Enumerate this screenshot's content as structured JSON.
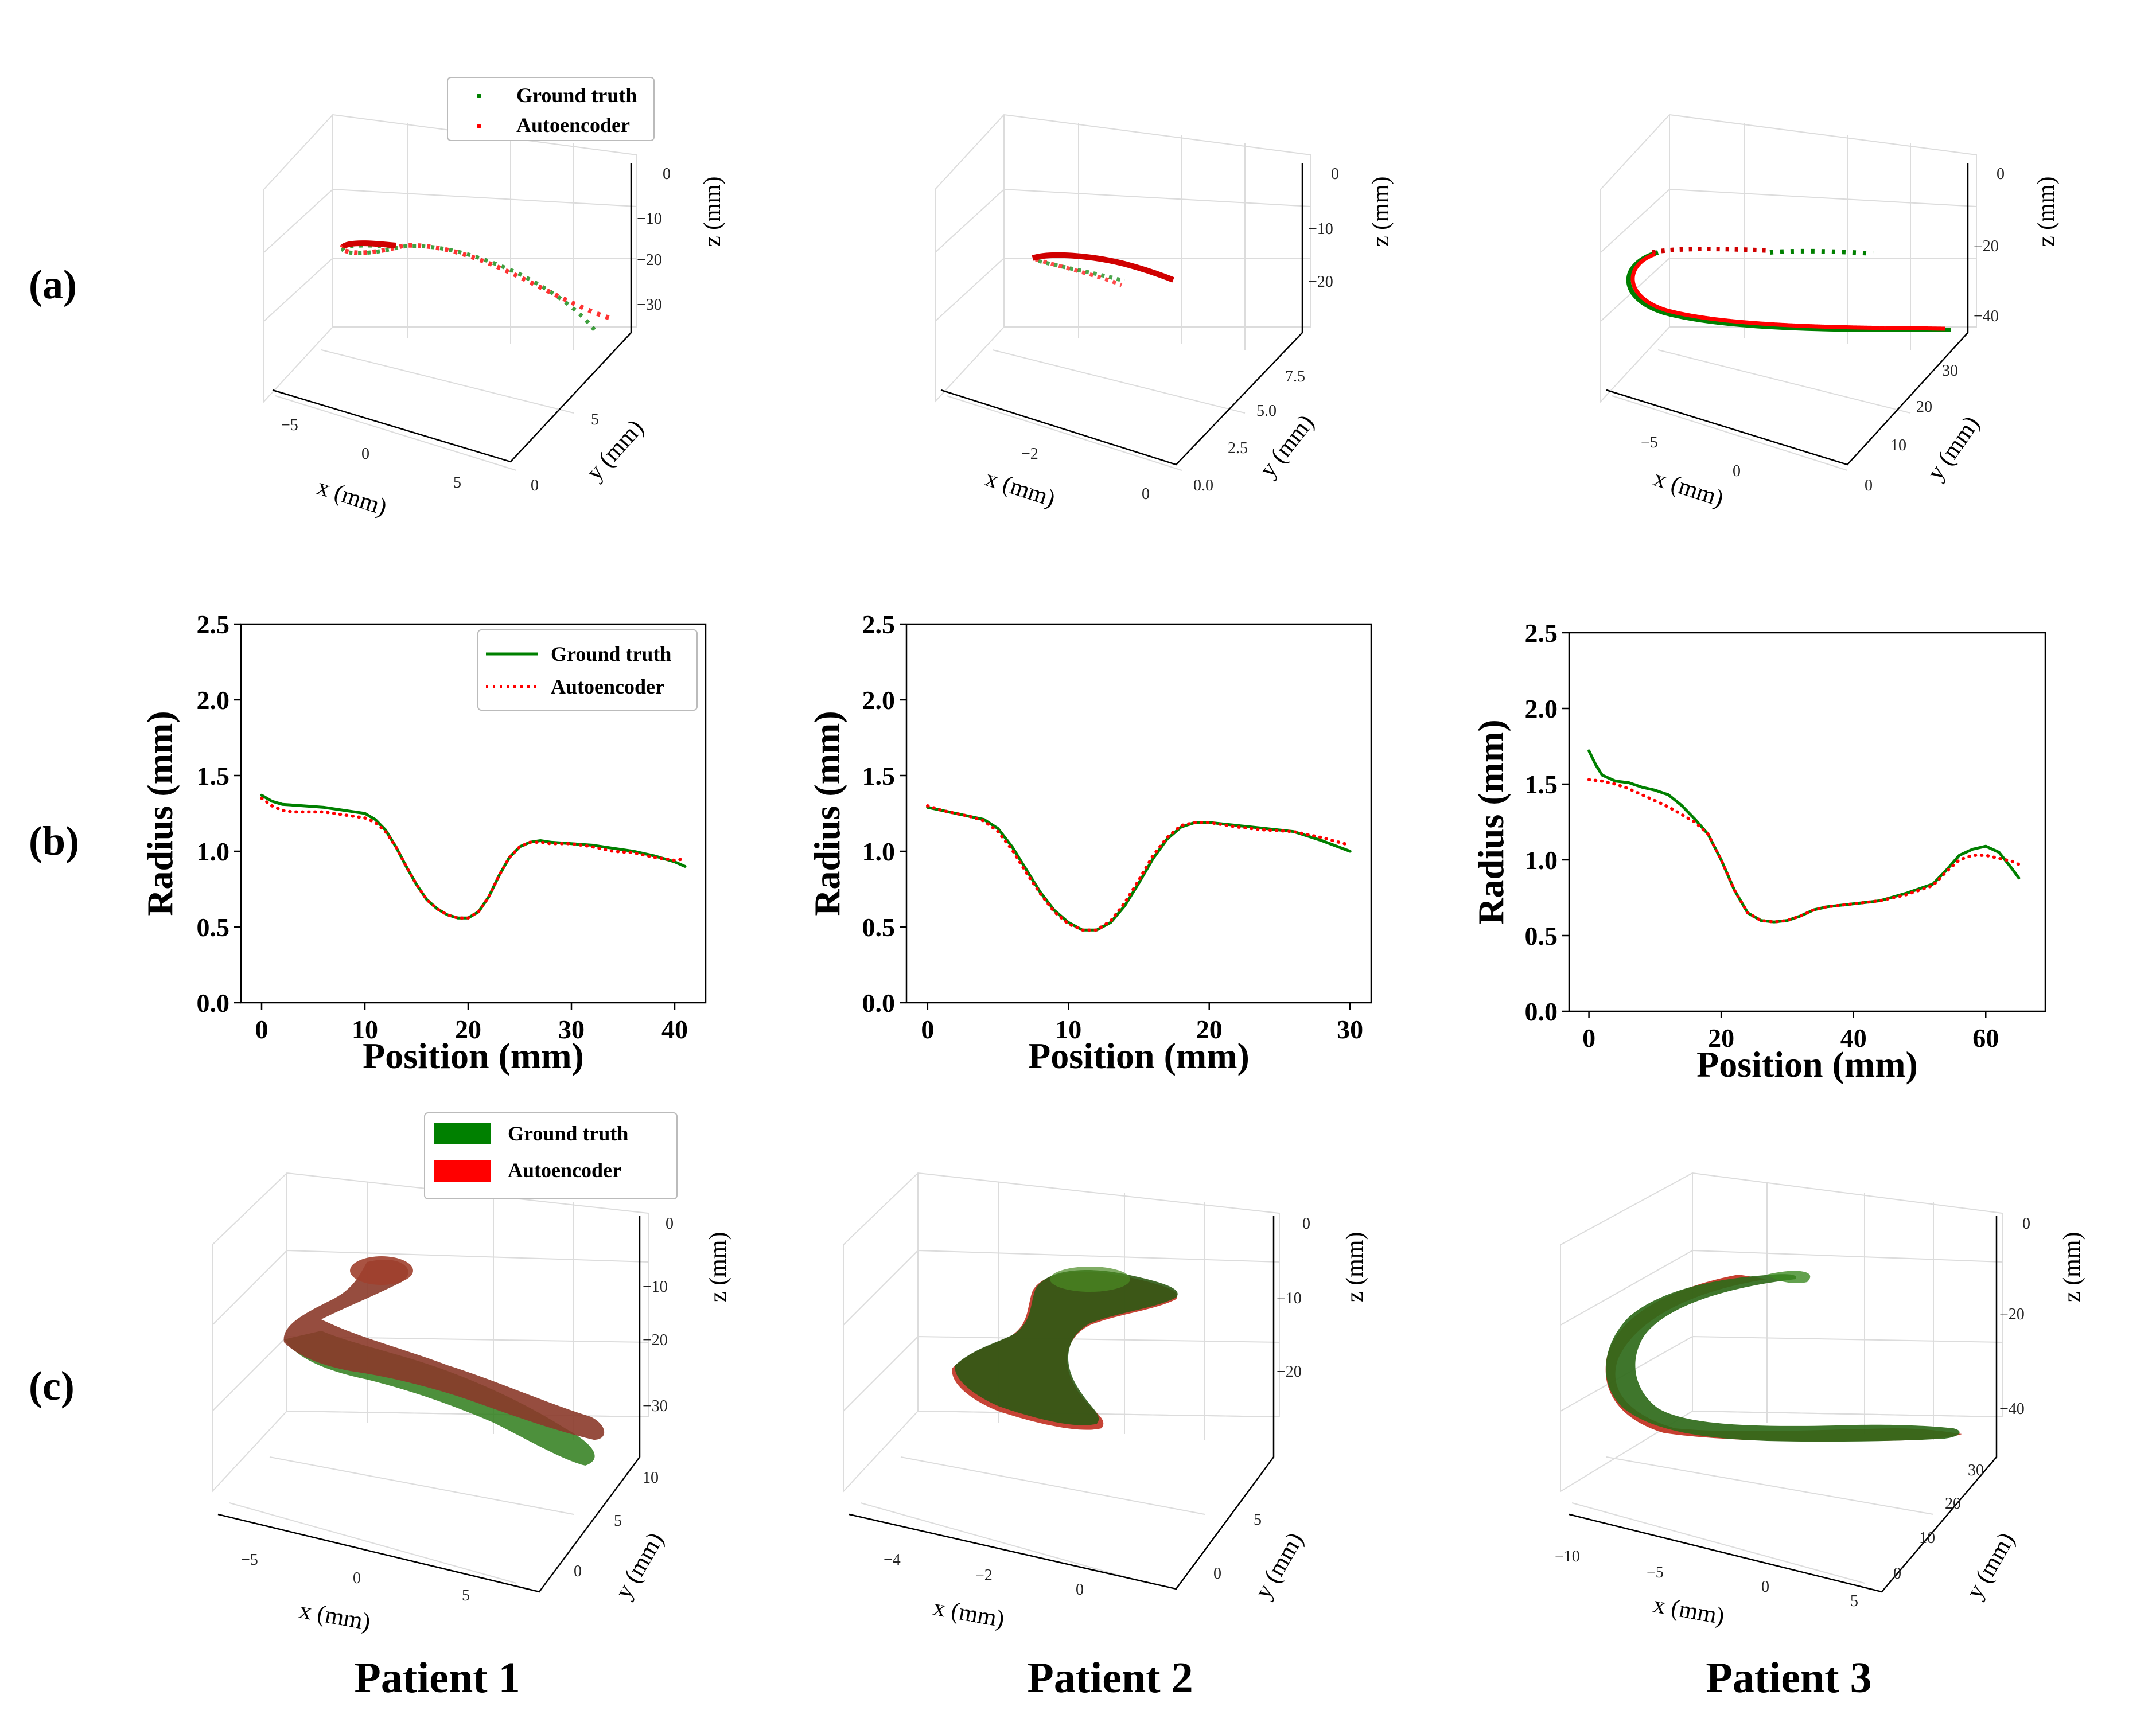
{
  "figure": {
    "row_labels": [
      "(a)",
      "(b)",
      "(c)"
    ],
    "patients": [
      "Patient 1",
      "Patient 2",
      "Patient 3"
    ],
    "colors": {
      "ground_truth": "#008000",
      "autoencoder": "#ff0000"
    }
  },
  "legends": {
    "a": [
      "Ground truth",
      "Autoencoder"
    ],
    "b": [
      "Ground truth",
      "Autoencoder"
    ],
    "c": [
      "Ground truth",
      "Autoencoder"
    ]
  },
  "chart_data": [
    {
      "id": "a1",
      "type": "scatter",
      "dims": "3d",
      "title": "",
      "xlabel": "x (mm)",
      "ylabel": "y (mm)",
      "zlabel": "z (mm)",
      "x_ticks": [
        "−5",
        "0",
        "5"
      ],
      "y_ticks": [
        "0",
        "5"
      ],
      "z_ticks": [
        "0",
        "−10",
        "−20",
        "−30"
      ],
      "series": [
        {
          "name": "Ground truth"
        },
        {
          "name": "Autoencoder"
        }
      ]
    },
    {
      "id": "a2",
      "type": "scatter",
      "dims": "3d",
      "title": "",
      "xlabel": "x (mm)",
      "ylabel": "y (mm)",
      "zlabel": "z (mm)",
      "x_ticks": [
        "−2",
        "0"
      ],
      "y_ticks": [
        "0.0",
        "2.5",
        "5.0",
        "7.5"
      ],
      "z_ticks": [
        "0",
        "−10",
        "−20"
      ],
      "series": [
        {
          "name": "Ground truth"
        },
        {
          "name": "Autoencoder"
        }
      ]
    },
    {
      "id": "a3",
      "type": "scatter",
      "dims": "3d",
      "title": "",
      "xlabel": "x (mm)",
      "ylabel": "y (mm)",
      "zlabel": "z (mm)",
      "x_ticks": [
        "−5",
        "0"
      ],
      "y_ticks": [
        "0",
        "10",
        "20",
        "30"
      ],
      "z_ticks": [
        "0",
        "−20",
        "−40"
      ],
      "series": [
        {
          "name": "Ground truth"
        },
        {
          "name": "Autoencoder"
        }
      ]
    },
    {
      "id": "b1",
      "type": "line",
      "title": "",
      "xlabel": "Position (mm)",
      "ylabel": "Radius (mm)",
      "xlim": [
        -2,
        43
      ],
      "ylim": [
        0,
        2.5
      ],
      "x_ticks": [
        0,
        10,
        20,
        30,
        40
      ],
      "x_tick_labels": [
        "0",
        "10",
        "20",
        "30",
        "40"
      ],
      "y_ticks": [
        0,
        0.5,
        1,
        1.5,
        2,
        2.5
      ],
      "y_tick_labels": [
        "0.0",
        "0.5",
        "1.0",
        "1.5",
        "2.0",
        "2.5"
      ],
      "series": [
        {
          "name": "Ground truth",
          "style": "solid",
          "x": [
            0,
            1,
            2,
            4,
            6,
            8,
            10,
            11,
            12,
            13,
            14,
            15,
            16,
            17,
            18,
            19,
            20,
            21,
            22,
            23,
            24,
            25,
            26,
            27,
            28,
            30,
            32,
            34,
            36,
            38,
            40,
            41
          ],
          "y": [
            1.37,
            1.33,
            1.31,
            1.3,
            1.29,
            1.27,
            1.25,
            1.21,
            1.14,
            1.03,
            0.9,
            0.78,
            0.68,
            0.62,
            0.58,
            0.56,
            0.56,
            0.6,
            0.7,
            0.84,
            0.96,
            1.03,
            1.06,
            1.07,
            1.06,
            1.05,
            1.04,
            1.02,
            1.0,
            0.97,
            0.93,
            0.9
          ]
        },
        {
          "name": "Autoencoder",
          "style": "dotted",
          "x": [
            0,
            1,
            2,
            3,
            4,
            6,
            8,
            10,
            11,
            12,
            13,
            14,
            15,
            16,
            17,
            18,
            19,
            20,
            21,
            22,
            23,
            24,
            25,
            26,
            27,
            28,
            30,
            32,
            34,
            36,
            38,
            40,
            41
          ],
          "y": [
            1.35,
            1.3,
            1.27,
            1.26,
            1.26,
            1.26,
            1.24,
            1.22,
            1.19,
            1.13,
            1.03,
            0.9,
            0.78,
            0.68,
            0.62,
            0.58,
            0.56,
            0.56,
            0.6,
            0.7,
            0.84,
            0.96,
            1.03,
            1.06,
            1.06,
            1.05,
            1.05,
            1.03,
            1.0,
            0.99,
            0.96,
            0.94,
            0.95
          ]
        }
      ]
    },
    {
      "id": "b2",
      "type": "line",
      "title": "",
      "xlabel": "Position (mm)",
      "ylabel": "Radius (mm)",
      "xlim": [
        -1.5,
        31.5
      ],
      "ylim": [
        0,
        2.5
      ],
      "x_ticks": [
        0,
        10,
        20,
        30
      ],
      "x_tick_labels": [
        "0",
        "10",
        "20",
        "30"
      ],
      "y_ticks": [
        0,
        0.5,
        1,
        1.5,
        2,
        2.5
      ],
      "y_tick_labels": [
        "0.0",
        "0.5",
        "1.0",
        "1.5",
        "2.0",
        "2.5"
      ],
      "series": [
        {
          "name": "Ground truth",
          "style": "solid",
          "x": [
            0,
            1,
            2,
            3,
            4,
            5,
            6,
            7,
            8,
            9,
            10,
            11,
            12,
            13,
            14,
            15,
            16,
            17,
            18,
            19,
            20,
            22,
            24,
            26,
            28,
            30
          ],
          "y": [
            1.29,
            1.27,
            1.25,
            1.23,
            1.21,
            1.15,
            1.03,
            0.88,
            0.73,
            0.61,
            0.53,
            0.48,
            0.48,
            0.53,
            0.64,
            0.79,
            0.95,
            1.08,
            1.16,
            1.19,
            1.19,
            1.17,
            1.15,
            1.13,
            1.07,
            1.0
          ]
        },
        {
          "name": "Autoencoder",
          "style": "dotted",
          "x": [
            0,
            1,
            2,
            3,
            4,
            5,
            6,
            7,
            8,
            9,
            10,
            11,
            12,
            13,
            14,
            15,
            16,
            17,
            18,
            19,
            20,
            22,
            24,
            26,
            28,
            30
          ],
          "y": [
            1.3,
            1.27,
            1.25,
            1.23,
            1.2,
            1.13,
            1.01,
            0.86,
            0.72,
            0.6,
            0.52,
            0.48,
            0.48,
            0.54,
            0.66,
            0.81,
            0.97,
            1.09,
            1.17,
            1.19,
            1.19,
            1.16,
            1.14,
            1.13,
            1.09,
            1.04
          ]
        }
      ]
    },
    {
      "id": "b3",
      "type": "line",
      "title": "",
      "xlabel": "Position (mm)",
      "ylabel": "Radius (mm)",
      "xlim": [
        -3,
        69
      ],
      "ylim": [
        0,
        2.5
      ],
      "x_ticks": [
        0,
        20,
        40,
        60
      ],
      "x_tick_labels": [
        "0",
        "20",
        "40",
        "60"
      ],
      "y_ticks": [
        0,
        0.5,
        1,
        1.5,
        2,
        2.5
      ],
      "y_tick_labels": [
        "0.0",
        "0.5",
        "1.0",
        "1.5",
        "2.0",
        "2.5"
      ],
      "series": [
        {
          "name": "Ground truth",
          "style": "solid",
          "x": [
            0,
            1,
            2,
            4,
            6,
            8,
            10,
            12,
            14,
            16,
            18,
            20,
            22,
            24,
            26,
            28,
            30,
            32,
            34,
            36,
            40,
            44,
            48,
            52,
            54,
            56,
            58,
            60,
            62,
            64,
            65
          ],
          "y": [
            1.72,
            1.63,
            1.56,
            1.52,
            1.51,
            1.48,
            1.46,
            1.43,
            1.36,
            1.27,
            1.17,
            1.0,
            0.8,
            0.65,
            0.6,
            0.59,
            0.6,
            0.63,
            0.67,
            0.69,
            0.71,
            0.73,
            0.78,
            0.84,
            0.93,
            1.03,
            1.07,
            1.09,
            1.05,
            0.94,
            0.88
          ]
        },
        {
          "name": "Autoencoder",
          "style": "dotted",
          "x": [
            0,
            2,
            4,
            6,
            8,
            10,
            12,
            14,
            16,
            18,
            20,
            22,
            24,
            26,
            28,
            30,
            32,
            34,
            36,
            40,
            44,
            48,
            52,
            54,
            56,
            58,
            60,
            62,
            64,
            65
          ],
          "y": [
            1.53,
            1.52,
            1.5,
            1.47,
            1.43,
            1.39,
            1.35,
            1.3,
            1.25,
            1.17,
            1.0,
            0.8,
            0.65,
            0.6,
            0.59,
            0.6,
            0.63,
            0.67,
            0.69,
            0.71,
            0.73,
            0.77,
            0.83,
            0.92,
            1.0,
            1.03,
            1.03,
            1.01,
            0.99,
            0.97
          ]
        }
      ]
    },
    {
      "id": "c1",
      "type": "surface",
      "dims": "3d",
      "title": "",
      "xlabel": "x (mm)",
      "ylabel": "y (mm)",
      "zlabel": "z (mm)",
      "x_ticks": [
        "−5",
        "0",
        "5"
      ],
      "y_ticks": [
        "0",
        "5",
        "10"
      ],
      "z_ticks": [
        "0",
        "−10",
        "−20",
        "−30"
      ],
      "series": [
        {
          "name": "Ground truth"
        },
        {
          "name": "Autoencoder"
        }
      ]
    },
    {
      "id": "c2",
      "type": "surface",
      "dims": "3d",
      "title": "",
      "xlabel": "x (mm)",
      "ylabel": "y (mm)",
      "zlabel": "z (mm)",
      "x_ticks": [
        "−4",
        "−2",
        "0"
      ],
      "y_ticks": [
        "0",
        "5"
      ],
      "z_ticks": [
        "0",
        "−10",
        "−20"
      ],
      "series": [
        {
          "name": "Ground truth"
        },
        {
          "name": "Autoencoder"
        }
      ]
    },
    {
      "id": "c3",
      "type": "surface",
      "dims": "3d",
      "title": "",
      "xlabel": "x (mm)",
      "ylabel": "y (mm)",
      "zlabel": "z (mm)",
      "x_ticks": [
        "−10",
        "−5",
        "0",
        "5"
      ],
      "y_ticks": [
        "0",
        "10",
        "20",
        "30"
      ],
      "z_ticks": [
        "0",
        "−20",
        "−40"
      ],
      "series": [
        {
          "name": "Ground truth"
        },
        {
          "name": "Autoencoder"
        }
      ]
    }
  ]
}
